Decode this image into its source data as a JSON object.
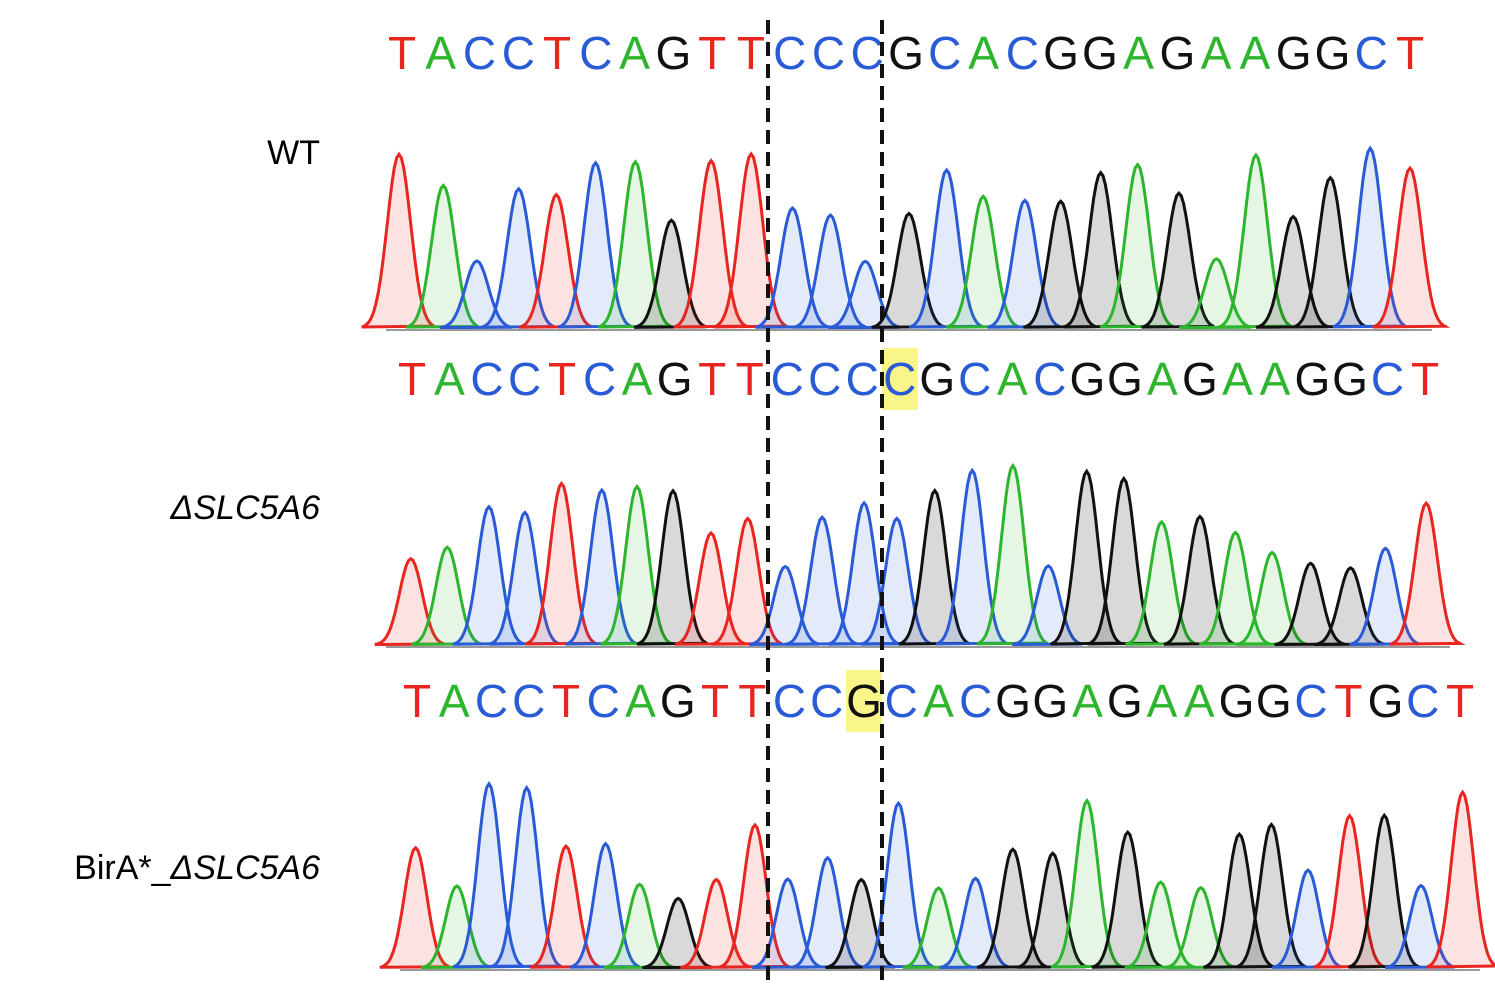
{
  "tracks": [
    {
      "label": [
        {
          "text": "WT",
          "italic": false
        }
      ],
      "bases": [
        "T",
        "A",
        "C",
        "C",
        "T",
        "C",
        "A",
        "G",
        "T",
        "T",
        "C",
        "C",
        "C",
        "G",
        "C",
        "A",
        "C",
        "G",
        "G",
        "A",
        "G",
        "A",
        "A",
        "G",
        "G",
        "C",
        "T"
      ]
    },
    {
      "label": [
        {
          "text": "ΔSLC5A6",
          "italic": true
        }
      ],
      "bases": [
        "T",
        "A",
        "C",
        "C",
        "T",
        "C",
        "A",
        "G",
        "T",
        "T",
        "C",
        "C",
        "C",
        "C",
        "G",
        "C",
        "A",
        "C",
        "G",
        "G",
        "A",
        "G",
        "A",
        "A",
        "G",
        "G",
        "C",
        "T"
      ],
      "highlight": 13
    },
    {
      "label": [
        {
          "text": "BirA*_",
          "italic": false
        },
        {
          "text": "ΔSLC5A6",
          "italic": true
        }
      ],
      "bases": [
        "T",
        "A",
        "C",
        "C",
        "T",
        "C",
        "A",
        "G",
        "T",
        "T",
        "C",
        "C",
        "G",
        "C",
        "A",
        "C",
        "G",
        "G",
        "A",
        "G",
        "A",
        "A",
        "G",
        "G",
        "C",
        "T",
        "G",
        "C",
        "T"
      ],
      "highlight": 12
    }
  ]
}
